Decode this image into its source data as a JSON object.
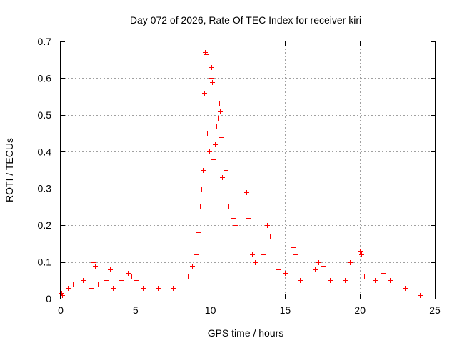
{
  "chart_data": {
    "type": "scatter",
    "title": "Day 072 of 2026, Rate Of TEC Index for receiver kiri",
    "xlabel": "GPS time / hours",
    "ylabel": "ROTI / TECUs",
    "xlim": [
      0,
      25
    ],
    "ylim": [
      0,
      0.7
    ],
    "x_ticks": [
      "0",
      "5",
      "10",
      "15",
      "20",
      "25"
    ],
    "y_ticks": [
      "0",
      "0.1",
      "0.2",
      "0.3",
      "0.4",
      "0.5",
      "0.6",
      "0.7"
    ],
    "grid": true,
    "marker": "+",
    "series": [
      {
        "name": "ROTI",
        "color": "#ff0000",
        "points": [
          [
            0.0,
            0.02
          ],
          [
            0.05,
            0.015
          ],
          [
            0.1,
            0.01
          ],
          [
            0.5,
            0.03
          ],
          [
            0.8,
            0.04
          ],
          [
            1.0,
            0.02
          ],
          [
            1.5,
            0.05
          ],
          [
            2.0,
            0.03
          ],
          [
            2.2,
            0.1
          ],
          [
            2.3,
            0.09
          ],
          [
            2.5,
            0.04
          ],
          [
            3.0,
            0.05
          ],
          [
            3.3,
            0.08
          ],
          [
            3.5,
            0.03
          ],
          [
            4.0,
            0.05
          ],
          [
            4.5,
            0.07
          ],
          [
            4.7,
            0.06
          ],
          [
            5.0,
            0.05
          ],
          [
            5.5,
            0.03
          ],
          [
            6.0,
            0.02
          ],
          [
            6.5,
            0.03
          ],
          [
            7.0,
            0.02
          ],
          [
            7.5,
            0.03
          ],
          [
            8.0,
            0.04
          ],
          [
            8.5,
            0.06
          ],
          [
            8.8,
            0.09
          ],
          [
            9.0,
            0.12
          ],
          [
            9.2,
            0.18
          ],
          [
            9.3,
            0.25
          ],
          [
            9.4,
            0.3
          ],
          [
            9.5,
            0.35
          ],
          [
            9.55,
            0.45
          ],
          [
            9.6,
            0.56
          ],
          [
            9.65,
            0.67
          ],
          [
            9.7,
            0.665
          ],
          [
            9.8,
            0.45
          ],
          [
            9.9,
            0.4
          ],
          [
            10.0,
            0.6
          ],
          [
            10.05,
            0.63
          ],
          [
            10.1,
            0.59
          ],
          [
            10.2,
            0.38
          ],
          [
            10.3,
            0.42
          ],
          [
            10.4,
            0.47
          ],
          [
            10.5,
            0.49
          ],
          [
            10.6,
            0.53
          ],
          [
            10.65,
            0.51
          ],
          [
            10.7,
            0.44
          ],
          [
            10.8,
            0.33
          ],
          [
            11.0,
            0.35
          ],
          [
            11.2,
            0.25
          ],
          [
            11.5,
            0.22
          ],
          [
            11.7,
            0.2
          ],
          [
            12.0,
            0.3
          ],
          [
            12.4,
            0.29
          ],
          [
            12.5,
            0.22
          ],
          [
            12.8,
            0.12
          ],
          [
            13.0,
            0.1
          ],
          [
            13.5,
            0.12
          ],
          [
            13.8,
            0.2
          ],
          [
            14.0,
            0.17
          ],
          [
            14.5,
            0.08
          ],
          [
            15.0,
            0.07
          ],
          [
            15.5,
            0.14
          ],
          [
            15.7,
            0.12
          ],
          [
            16.0,
            0.05
          ],
          [
            16.5,
            0.06
          ],
          [
            17.0,
            0.08
          ],
          [
            17.2,
            0.1
          ],
          [
            17.5,
            0.09
          ],
          [
            18.0,
            0.05
          ],
          [
            18.5,
            0.04
          ],
          [
            19.0,
            0.05
          ],
          [
            19.3,
            0.1
          ],
          [
            19.5,
            0.06
          ],
          [
            20.0,
            0.13
          ],
          [
            20.1,
            0.12
          ],
          [
            20.3,
            0.06
          ],
          [
            20.7,
            0.04
          ],
          [
            21.0,
            0.05
          ],
          [
            21.5,
            0.07
          ],
          [
            22.0,
            0.05
          ],
          [
            22.5,
            0.06
          ],
          [
            23.0,
            0.03
          ],
          [
            23.5,
            0.02
          ],
          [
            24.0,
            0.01
          ]
        ]
      }
    ]
  }
}
